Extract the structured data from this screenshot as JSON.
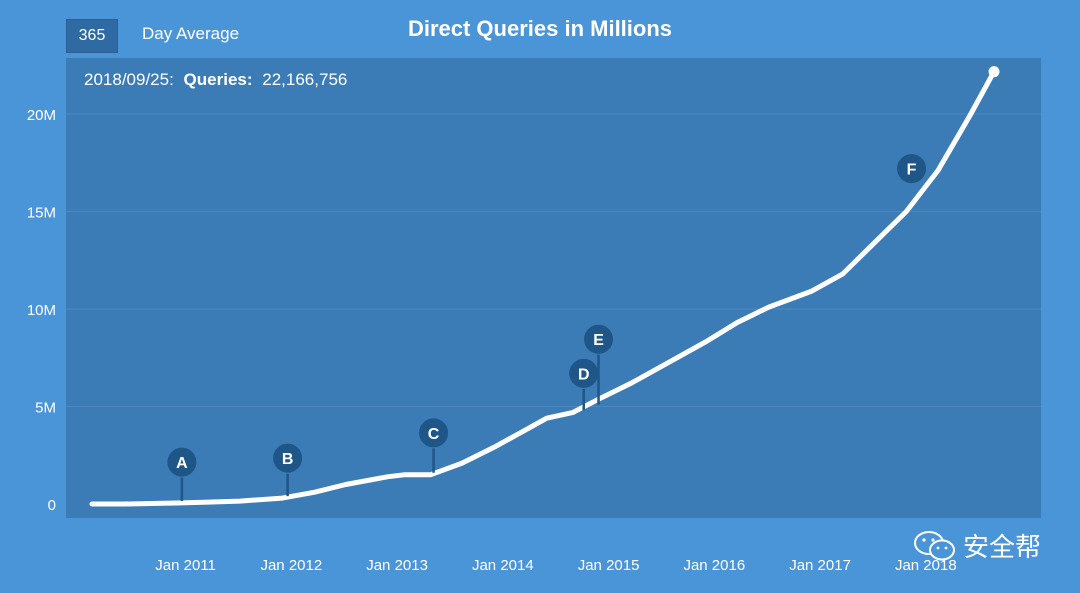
{
  "controls": {
    "period_button": "365",
    "period_label": "Day Average"
  },
  "chart_data": {
    "type": "line",
    "title": "Direct Queries in Millions",
    "readout": {
      "date": "2018/09/25:",
      "label": "Queries:",
      "value": "22,166,756"
    },
    "x_ticks": [
      "Jan 2011",
      "Jan 2012",
      "Jan 2013",
      "Jan 2014",
      "Jan 2015",
      "Jan 2016",
      "Jan 2017",
      "Jan 2018"
    ],
    "y_ticks": [
      "0",
      "5M",
      "10M",
      "15M",
      "20M"
    ],
    "ylim": [
      0,
      22.5
    ],
    "xlim": [
      2010.2,
      2018.9
    ],
    "grid": true,
    "series": [
      {
        "x": [
          2010.2,
          2010.5,
          2011.0,
          2011.3,
          2011.6,
          2012.0,
          2012.3,
          2012.6,
          2013.0,
          2013.15,
          2013.4,
          2013.7,
          2014.0,
          2014.3,
          2014.5,
          2014.75,
          2015.0,
          2015.3,
          2015.6,
          2016.0,
          2016.3,
          2016.6,
          2017.0,
          2017.3,
          2017.6,
          2017.9,
          2018.2,
          2018.5,
          2018.73
        ],
        "y": [
          0.0,
          0.0,
          0.05,
          0.1,
          0.15,
          0.3,
          0.6,
          1.0,
          1.4,
          1.5,
          1.5,
          2.1,
          2.9,
          3.8,
          4.4,
          4.7,
          5.4,
          6.2,
          7.1,
          8.3,
          9.3,
          10.1,
          10.9,
          11.8,
          13.4,
          15.0,
          17.1,
          19.9,
          22.17
        ]
      }
    ],
    "annotations": [
      {
        "label": "A",
        "x": 2011.05,
        "y": 0.05,
        "level": 2.15
      },
      {
        "label": "B",
        "x": 2012.05,
        "y": 0.3,
        "level": 2.35
      },
      {
        "label": "C",
        "x": 2013.43,
        "y": 1.5,
        "level": 3.65
      },
      {
        "label": "D",
        "x": 2014.85,
        "y": 4.7,
        "level": 6.7
      },
      {
        "label": "E",
        "x": 2014.99,
        "y": 5.0,
        "level": 8.45
      },
      {
        "label": "F",
        "x": 2017.95,
        "y": 17.2,
        "level": 17.2
      }
    ]
  },
  "watermark": {
    "text": "安全帮"
  },
  "colors": {
    "background": "#4a95d7",
    "plot": "#3b7cb7",
    "line": "#ffffff",
    "marker": "#1f5688"
  }
}
